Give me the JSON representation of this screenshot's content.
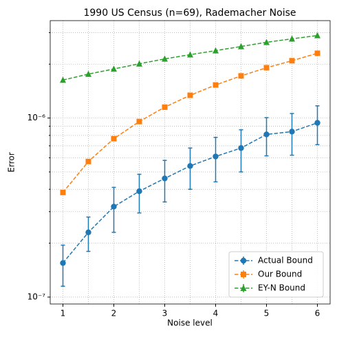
{
  "chart_data": {
    "type": "line",
    "title": "1990 US Census (n=69), Rademacher Noise",
    "xlabel": "Noise level",
    "ylabel": "Error",
    "x": [
      1,
      1.5,
      2,
      2.5,
      3,
      3.5,
      4,
      4.5,
      5,
      5.5,
      6
    ],
    "series": [
      {
        "name": "Actual Bound",
        "color": "#1f77b4",
        "marker": "circle",
        "values": [
          1.55e-07,
          2.3e-07,
          3.2e-07,
          3.9e-07,
          4.6e-07,
          5.4e-07,
          6.1e-07,
          6.8e-07,
          8.1e-07,
          8.4e-07,
          9.4e-07
        ],
        "errors": [
          4e-08,
          5e-08,
          9e-08,
          9.5e-08,
          1.2e-07,
          1.4e-07,
          1.7e-07,
          1.8e-07,
          1.95e-07,
          2.2e-07,
          2.3e-07
        ]
      },
      {
        "name": "Our Bound",
        "color": "#ff7f0e",
        "marker": "square",
        "values": [
          3.84e-07,
          5.72e-07,
          7.67e-07,
          9.56e-07,
          1.15e-06,
          1.34e-06,
          1.53e-06,
          1.72e-06,
          1.91e-06,
          2.09e-06,
          2.3e-06
        ]
      },
      {
        "name": "EY-N Bound",
        "color": "#2ca02c",
        "marker": "triangle",
        "values": [
          1.63e-06,
          1.76e-06,
          1.88e-06,
          2.01e-06,
          2.14e-06,
          2.26e-06,
          2.38e-06,
          2.51e-06,
          2.65e-06,
          2.77e-06,
          2.89e-06
        ]
      }
    ],
    "xlim": [
      0.75,
      6.25
    ],
    "xticks": [
      1,
      2,
      3,
      4,
      5,
      6
    ],
    "xminor_ticks": [
      1.5,
      2.5,
      3.5,
      4.5,
      5.5
    ],
    "ylim": [
      9.15e-08,
      3.5e-06
    ],
    "log_y": true,
    "yticks": [
      {
        "value": 1e-07,
        "label": "10⁻⁷"
      },
      {
        "value": 1e-06,
        "label": "10⁻⁶"
      }
    ],
    "yminor_ticks": [
      2e-07,
      3e-07,
      4e-07,
      5e-07,
      6e-07,
      7e-07,
      8e-07,
      9e-07,
      2e-06,
      3e-06
    ],
    "grid": true,
    "legend": "lower right"
  }
}
